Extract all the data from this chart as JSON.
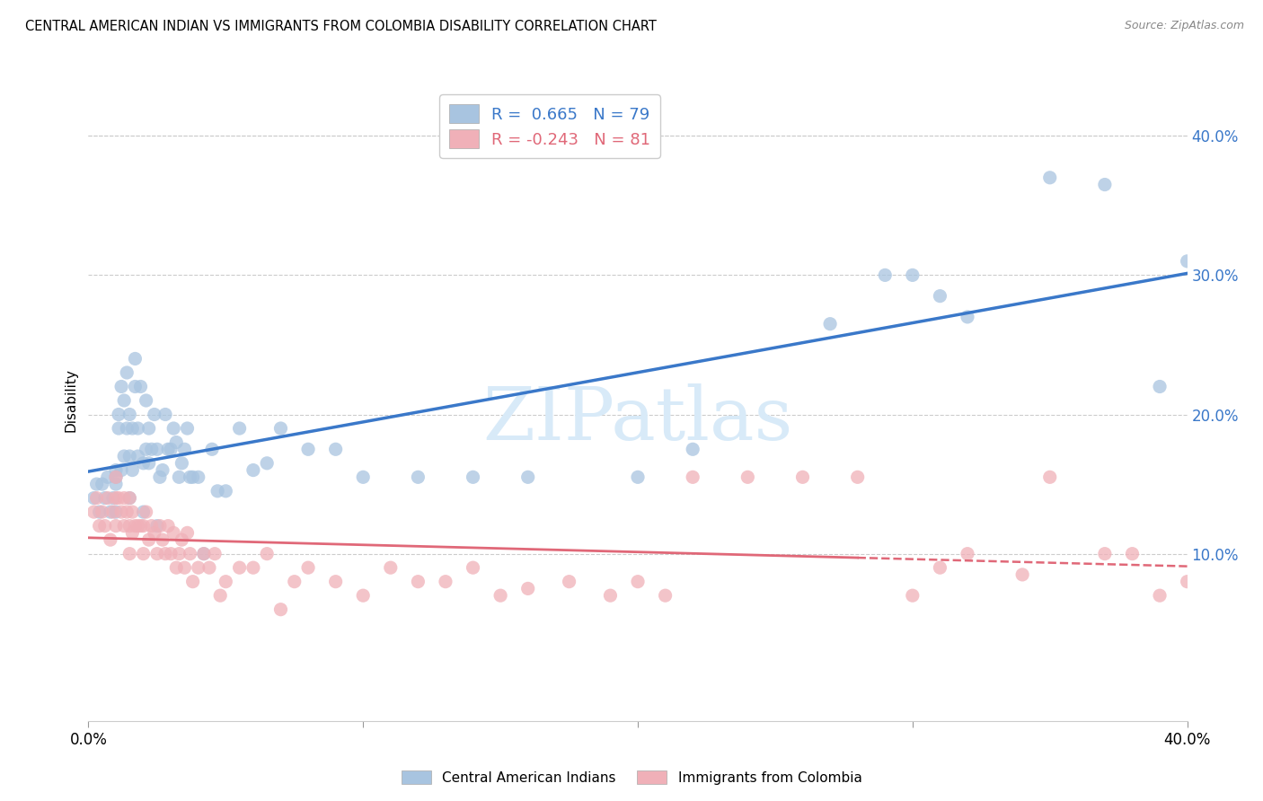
{
  "title": "CENTRAL AMERICAN INDIAN VS IMMIGRANTS FROM COLOMBIA DISABILITY CORRELATION CHART",
  "source": "Source: ZipAtlas.com",
  "ylabel": "Disability",
  "xlim": [
    0.0,
    0.4
  ],
  "ylim": [
    -0.02,
    0.44
  ],
  "xticks": [
    0.0,
    0.1,
    0.2,
    0.3,
    0.4
  ],
  "xticklabels": [
    "0.0%",
    "",
    "",
    "",
    "40.0%"
  ],
  "yticks": [
    0.1,
    0.2,
    0.3,
    0.4
  ],
  "yticklabels": [
    "10.0%",
    "20.0%",
    "30.0%",
    "40.0%"
  ],
  "blue_R": 0.665,
  "blue_N": 79,
  "pink_R": -0.243,
  "pink_N": 81,
  "blue_color": "#a8c4e0",
  "pink_color": "#f0b0b8",
  "blue_line_color": "#3a78c9",
  "pink_line_color": "#e06878",
  "watermark_color": "#d8eaf8",
  "legend_label_blue": "Central American Indians",
  "legend_label_pink": "Immigrants from Colombia",
  "blue_scatter_x": [
    0.002,
    0.003,
    0.004,
    0.005,
    0.006,
    0.007,
    0.008,
    0.009,
    0.01,
    0.01,
    0.01,
    0.01,
    0.011,
    0.011,
    0.012,
    0.012,
    0.013,
    0.013,
    0.014,
    0.014,
    0.015,
    0.015,
    0.015,
    0.016,
    0.016,
    0.017,
    0.017,
    0.018,
    0.018,
    0.019,
    0.02,
    0.02,
    0.021,
    0.021,
    0.022,
    0.022,
    0.023,
    0.024,
    0.025,
    0.025,
    0.026,
    0.027,
    0.028,
    0.029,
    0.03,
    0.031,
    0.032,
    0.033,
    0.034,
    0.035,
    0.036,
    0.037,
    0.038,
    0.04,
    0.042,
    0.045,
    0.047,
    0.05,
    0.055,
    0.06,
    0.065,
    0.07,
    0.08,
    0.09,
    0.1,
    0.12,
    0.14,
    0.16,
    0.2,
    0.22,
    0.27,
    0.29,
    0.3,
    0.31,
    0.32,
    0.35,
    0.37,
    0.39,
    0.4
  ],
  "blue_scatter_y": [
    0.14,
    0.15,
    0.13,
    0.15,
    0.14,
    0.155,
    0.13,
    0.14,
    0.155,
    0.16,
    0.13,
    0.15,
    0.19,
    0.2,
    0.16,
    0.22,
    0.17,
    0.21,
    0.19,
    0.23,
    0.14,
    0.17,
    0.2,
    0.16,
    0.19,
    0.22,
    0.24,
    0.17,
    0.19,
    0.22,
    0.13,
    0.165,
    0.175,
    0.21,
    0.165,
    0.19,
    0.175,
    0.2,
    0.12,
    0.175,
    0.155,
    0.16,
    0.2,
    0.175,
    0.175,
    0.19,
    0.18,
    0.155,
    0.165,
    0.175,
    0.19,
    0.155,
    0.155,
    0.155,
    0.1,
    0.175,
    0.145,
    0.145,
    0.19,
    0.16,
    0.165,
    0.19,
    0.175,
    0.175,
    0.155,
    0.155,
    0.155,
    0.155,
    0.155,
    0.175,
    0.265,
    0.3,
    0.3,
    0.285,
    0.27,
    0.37,
    0.365,
    0.22,
    0.31
  ],
  "pink_scatter_x": [
    0.002,
    0.003,
    0.004,
    0.005,
    0.006,
    0.007,
    0.008,
    0.009,
    0.01,
    0.01,
    0.01,
    0.011,
    0.012,
    0.013,
    0.013,
    0.014,
    0.015,
    0.015,
    0.015,
    0.016,
    0.016,
    0.017,
    0.018,
    0.019,
    0.02,
    0.02,
    0.021,
    0.022,
    0.023,
    0.024,
    0.025,
    0.026,
    0.027,
    0.028,
    0.029,
    0.03,
    0.031,
    0.032,
    0.033,
    0.034,
    0.035,
    0.036,
    0.037,
    0.038,
    0.04,
    0.042,
    0.044,
    0.046,
    0.048,
    0.05,
    0.055,
    0.06,
    0.065,
    0.07,
    0.075,
    0.08,
    0.09,
    0.1,
    0.11,
    0.12,
    0.13,
    0.14,
    0.15,
    0.16,
    0.175,
    0.19,
    0.2,
    0.21,
    0.22,
    0.24,
    0.26,
    0.28,
    0.3,
    0.31,
    0.32,
    0.34,
    0.35,
    0.37,
    0.38,
    0.39,
    0.4
  ],
  "pink_scatter_y": [
    0.13,
    0.14,
    0.12,
    0.13,
    0.12,
    0.14,
    0.11,
    0.13,
    0.14,
    0.155,
    0.12,
    0.14,
    0.13,
    0.12,
    0.14,
    0.13,
    0.1,
    0.12,
    0.14,
    0.115,
    0.13,
    0.12,
    0.12,
    0.12,
    0.1,
    0.12,
    0.13,
    0.11,
    0.12,
    0.115,
    0.1,
    0.12,
    0.11,
    0.1,
    0.12,
    0.1,
    0.115,
    0.09,
    0.1,
    0.11,
    0.09,
    0.115,
    0.1,
    0.08,
    0.09,
    0.1,
    0.09,
    0.1,
    0.07,
    0.08,
    0.09,
    0.09,
    0.1,
    0.06,
    0.08,
    0.09,
    0.08,
    0.07,
    0.09,
    0.08,
    0.08,
    0.09,
    0.07,
    0.075,
    0.08,
    0.07,
    0.08,
    0.07,
    0.155,
    0.155,
    0.155,
    0.155,
    0.07,
    0.09,
    0.1,
    0.085,
    0.155,
    0.1,
    0.1,
    0.07,
    0.08
  ]
}
